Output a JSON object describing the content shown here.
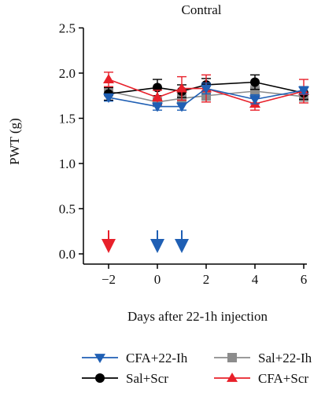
{
  "chart_data": {
    "type": "line",
    "title": "Contral",
    "xlabel": "Days after 22-1h injection",
    "ylabel": "PWT (g)",
    "xlim": [
      -3,
      7
    ],
    "ylim": [
      0,
      2.5
    ],
    "x_ticks": [
      -2,
      0,
      2,
      4,
      6
    ],
    "x_tick_labels": [
      "−2",
      "0",
      "2",
      "4",
      "6"
    ],
    "y_ticks": [
      0,
      0.5,
      1,
      1.5,
      2,
      2.5
    ],
    "y_tick_labels": [
      "0.0",
      "0.5",
      "1.0",
      "1.5",
      "2.0",
      "2.5"
    ],
    "series": [
      {
        "name": "CFA+22-Ih",
        "color": "#1f5fb4",
        "marker": "triangle-down",
        "x": [
          -2,
          0,
          1,
          2,
          4,
          6
        ],
        "y": [
          1.73,
          1.63,
          1.63,
          1.83,
          1.71,
          1.81
        ],
        "err": [
          0.04,
          0.04,
          0.04,
          0.06,
          0.05,
          0.04
        ]
      },
      {
        "name": "Sal+22-Ih",
        "color": "#8c8c8c",
        "marker": "square",
        "x": [
          -2,
          0,
          1,
          2,
          4,
          6
        ],
        "y": [
          1.8,
          1.68,
          1.72,
          1.75,
          1.8,
          1.74
        ],
        "err": [
          0.05,
          0.05,
          0.05,
          0.05,
          0.06,
          0.05
        ]
      },
      {
        "name": "Sal+Scr",
        "color": "#000000",
        "marker": "circle",
        "x": [
          -2,
          0,
          1,
          2,
          4,
          6
        ],
        "y": [
          1.77,
          1.84,
          1.8,
          1.87,
          1.9,
          1.78
        ],
        "err": [
          0.07,
          0.09,
          0.07,
          0.07,
          0.08,
          0.07
        ]
      },
      {
        "name": "CFA+Scr",
        "color": "#e8202a",
        "marker": "triangle-up",
        "x": [
          -2,
          0,
          1,
          2,
          4,
          6
        ],
        "y": [
          1.93,
          1.73,
          1.83,
          1.83,
          1.66,
          1.8
        ],
        "err": [
          0.08,
          0.08,
          0.13,
          0.15,
          0.07,
          0.13
        ]
      }
    ],
    "arrows": [
      {
        "x": -2,
        "color": "#e8202a"
      },
      {
        "x": 0,
        "color": "#1f5fb4"
      },
      {
        "x": 1,
        "color": "#1f5fb4"
      }
    ],
    "legend_placement": "bottom",
    "grid": false
  }
}
